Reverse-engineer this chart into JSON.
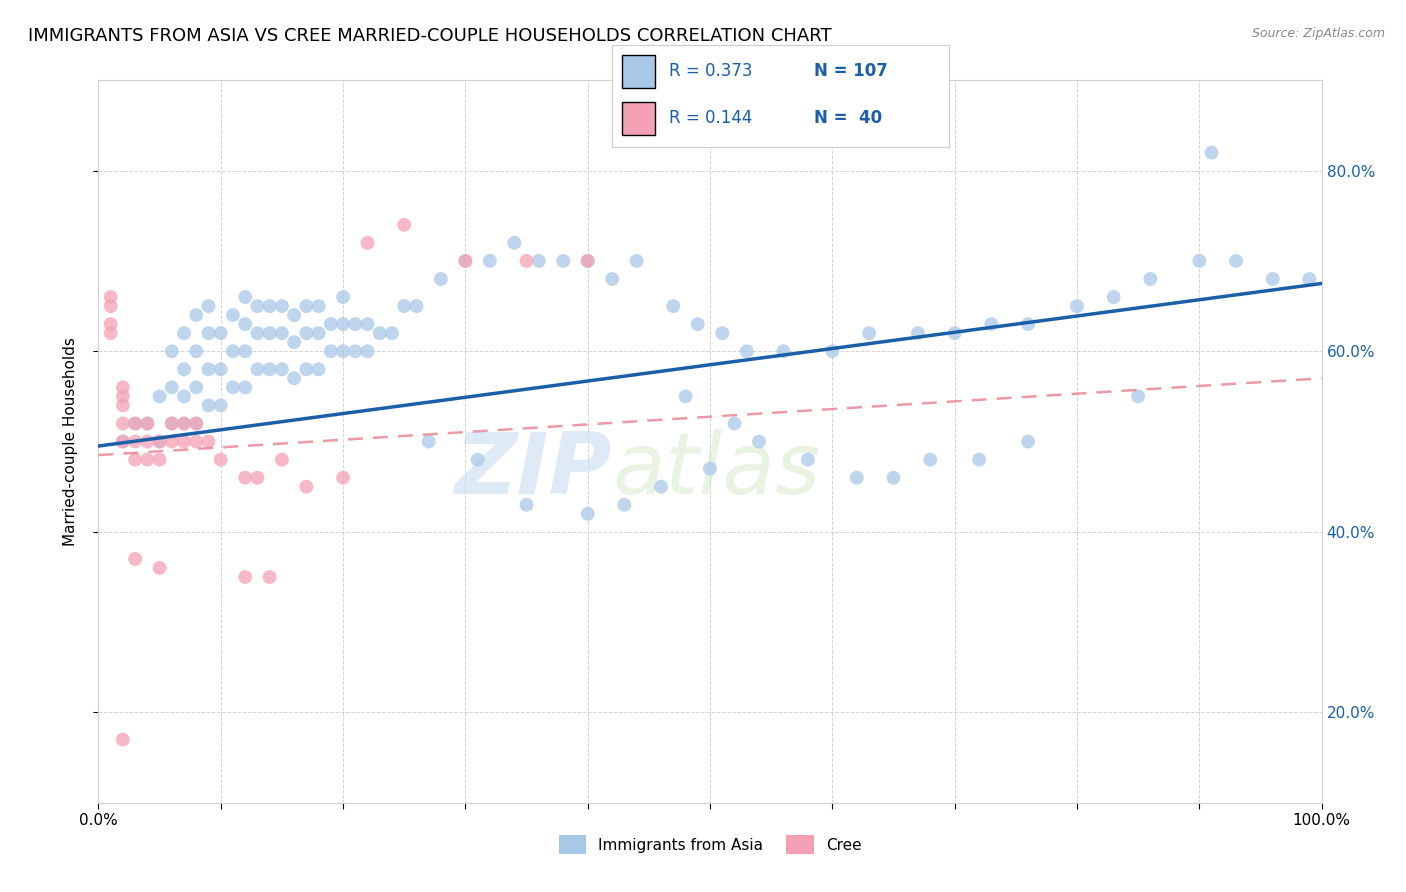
{
  "title": "IMMIGRANTS FROM ASIA VS CREE MARRIED-COUPLE HOUSEHOLDS CORRELATION CHART",
  "source": "Source: ZipAtlas.com",
  "ylabel": "Married-couple Households",
  "right_yticks": [
    "20.0%",
    "40.0%",
    "60.0%",
    "80.0%"
  ],
  "right_ytick_vals": [
    0.2,
    0.4,
    0.6,
    0.8
  ],
  "color_blue": "#a8c8e8",
  "color_pink": "#f4a0b5",
  "color_blue_line": "#1a5fa8",
  "color_pink_line": "#e88090",
  "watermark_zip": "ZIP",
  "watermark_atlas": "atlas",
  "legend_label1": "Immigrants from Asia",
  "legend_label2": "Cree",
  "blue_scatter_x": [
    0.02,
    0.03,
    0.04,
    0.05,
    0.05,
    0.06,
    0.06,
    0.06,
    0.07,
    0.07,
    0.07,
    0.07,
    0.08,
    0.08,
    0.08,
    0.08,
    0.09,
    0.09,
    0.09,
    0.09,
    0.1,
    0.1,
    0.1,
    0.11,
    0.11,
    0.11,
    0.12,
    0.12,
    0.12,
    0.12,
    0.13,
    0.13,
    0.13,
    0.14,
    0.14,
    0.14,
    0.15,
    0.15,
    0.15,
    0.16,
    0.16,
    0.16,
    0.17,
    0.17,
    0.17,
    0.18,
    0.18,
    0.18,
    0.19,
    0.19,
    0.2,
    0.2,
    0.2,
    0.21,
    0.21,
    0.22,
    0.22,
    0.23,
    0.24,
    0.25,
    0.26,
    0.28,
    0.3,
    0.32,
    0.34,
    0.36,
    0.38,
    0.4,
    0.42,
    0.44,
    0.47,
    0.49,
    0.51,
    0.53,
    0.56,
    0.6,
    0.63,
    0.67,
    0.7,
    0.73,
    0.76,
    0.8,
    0.83,
    0.86,
    0.9,
    0.93,
    0.96,
    0.99,
    0.48,
    0.52,
    0.58,
    0.62,
    0.65,
    0.68,
    0.72,
    0.76,
    0.85,
    0.91,
    0.27,
    0.31,
    0.35,
    0.4,
    0.43,
    0.46,
    0.5,
    0.54
  ],
  "blue_scatter_y": [
    0.5,
    0.52,
    0.52,
    0.5,
    0.55,
    0.52,
    0.56,
    0.6,
    0.52,
    0.55,
    0.58,
    0.62,
    0.52,
    0.56,
    0.6,
    0.64,
    0.54,
    0.58,
    0.62,
    0.65,
    0.54,
    0.58,
    0.62,
    0.56,
    0.6,
    0.64,
    0.56,
    0.6,
    0.63,
    0.66,
    0.58,
    0.62,
    0.65,
    0.58,
    0.62,
    0.65,
    0.58,
    0.62,
    0.65,
    0.57,
    0.61,
    0.64,
    0.58,
    0.62,
    0.65,
    0.58,
    0.62,
    0.65,
    0.6,
    0.63,
    0.6,
    0.63,
    0.66,
    0.6,
    0.63,
    0.6,
    0.63,
    0.62,
    0.62,
    0.65,
    0.65,
    0.68,
    0.7,
    0.7,
    0.72,
    0.7,
    0.7,
    0.7,
    0.68,
    0.7,
    0.65,
    0.63,
    0.62,
    0.6,
    0.6,
    0.6,
    0.62,
    0.62,
    0.62,
    0.63,
    0.63,
    0.65,
    0.66,
    0.68,
    0.7,
    0.7,
    0.68,
    0.68,
    0.55,
    0.52,
    0.48,
    0.46,
    0.46,
    0.48,
    0.48,
    0.5,
    0.55,
    0.82,
    0.5,
    0.48,
    0.43,
    0.42,
    0.43,
    0.45,
    0.47,
    0.5
  ],
  "pink_scatter_x": [
    0.01,
    0.01,
    0.01,
    0.01,
    0.02,
    0.02,
    0.02,
    0.02,
    0.02,
    0.03,
    0.03,
    0.03,
    0.04,
    0.04,
    0.04,
    0.05,
    0.05,
    0.06,
    0.06,
    0.07,
    0.07,
    0.08,
    0.08,
    0.09,
    0.1,
    0.12,
    0.13,
    0.15,
    0.17,
    0.2,
    0.22,
    0.25,
    0.3,
    0.35,
    0.4,
    0.12,
    0.14,
    0.05,
    0.03,
    0.02
  ],
  "pink_scatter_y": [
    0.62,
    0.63,
    0.65,
    0.66,
    0.5,
    0.52,
    0.54,
    0.55,
    0.56,
    0.48,
    0.5,
    0.52,
    0.48,
    0.5,
    0.52,
    0.48,
    0.5,
    0.5,
    0.52,
    0.5,
    0.52,
    0.5,
    0.52,
    0.5,
    0.48,
    0.46,
    0.46,
    0.48,
    0.45,
    0.46,
    0.72,
    0.74,
    0.7,
    0.7,
    0.7,
    0.35,
    0.35,
    0.36,
    0.37,
    0.17
  ],
  "xlim": [
    0.0,
    1.0
  ],
  "ylim": [
    0.1,
    0.9
  ],
  "blue_line_x0": 0.0,
  "blue_line_x1": 1.0,
  "blue_line_y0": 0.495,
  "blue_line_y1": 0.675,
  "pink_line_x0": 0.0,
  "pink_line_x1": 1.0,
  "pink_line_y0": 0.485,
  "pink_line_y1": 0.57,
  "grid_color": "#d0d0d0",
  "bg_color": "#ffffff",
  "title_fontsize": 13,
  "axis_label_fontsize": 11,
  "tick_fontsize": 11
}
